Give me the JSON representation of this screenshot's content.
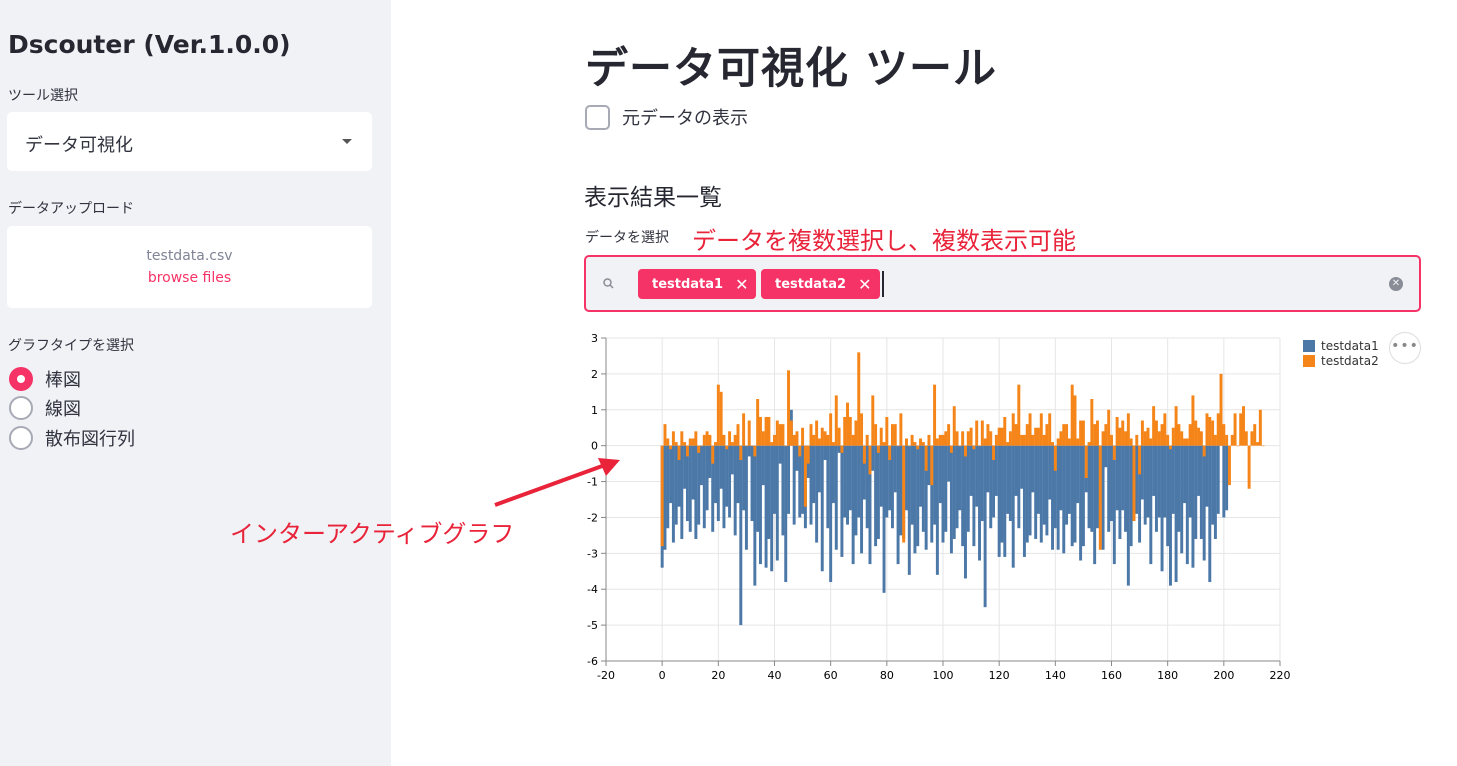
{
  "sidebar": {
    "app_title": "Dscouter (Ver.1.0.0)",
    "tool_label": "ツール選択",
    "tool_value": "データ可視化",
    "upload_label": "データアップロード",
    "upload_filename": "testdata.csv",
    "upload_browse": "browse files",
    "graph_label": "グラフタイプを選択",
    "graph_options": [
      {
        "label": "棒図",
        "selected": true
      },
      {
        "label": "線図",
        "selected": false
      },
      {
        "label": "散布図行列",
        "selected": false
      }
    ]
  },
  "main": {
    "title": "データ可視化 ツール",
    "raw_checkbox_label": "元データの表示",
    "section_title": "表示結果一覧",
    "multiselect_label": "データを選択",
    "selected_tags": [
      "testdata1",
      "testdata2"
    ],
    "tag_remove_glyph": "✕",
    "clear_glyph": "✕",
    "more_glyph": "•••"
  },
  "annotations": {
    "multi_select_note": "データを複数選択し、複数表示可能",
    "interactive_note": "インターアクティブグラフ"
  },
  "colors": {
    "accent": "#f63366",
    "annotation": "#e8233a",
    "series1": "#4c78a8",
    "series2": "#f58518"
  },
  "chart_data": {
    "type": "bar",
    "x_ticks": [
      -20,
      0,
      20,
      40,
      60,
      80,
      100,
      120,
      140,
      160,
      180,
      200,
      220
    ],
    "y_ticks": [
      3,
      2,
      1,
      0,
      -1,
      -2,
      -3,
      -4,
      -5,
      -6
    ],
    "xlim": [
      -20,
      220
    ],
    "ylim": [
      -6,
      3
    ],
    "grid": true,
    "legend_position": "top-right",
    "series": [
      {
        "name": "testdata1",
        "color": "#4c78a8",
        "values": [
          -3.4,
          -2.9,
          -2.3,
          -1.6,
          -2.7,
          -2.2,
          -1.7,
          -2.6,
          -1.2,
          -2.1,
          -2.4,
          -1.5,
          -2.6,
          -2.2,
          -1.1,
          -2.3,
          -1.8,
          -0.9,
          -2.4,
          -1.6,
          -2.1,
          -1.2,
          -2.3,
          -1.7,
          -2.0,
          -0.8,
          -2.5,
          -1.6,
          -5.0,
          -1.8,
          -2.9,
          -0.3,
          -2.1,
          -3.9,
          -2.4,
          -3.3,
          -1.1,
          -3.4,
          -2.6,
          -3.5,
          -1.9,
          -3.2,
          -0.5,
          -2.5,
          -3.8,
          -1.9,
          1.0,
          -2.2,
          -0.7,
          -2.0,
          -1.9,
          -2.3,
          -0.9,
          -2.2,
          -1.6,
          -2.7,
          -1.3,
          -3.5,
          -0.4,
          -2.3,
          -3.8,
          -1.6,
          -2.9,
          -0.2,
          -3.1,
          -2.0,
          -2.2,
          -1.8,
          -3.3,
          -2.5,
          -2.0,
          -3.0,
          -1.5,
          -2.3,
          -3.3,
          -0.7,
          -2.8,
          -2.6,
          -1.7,
          -4.1,
          -2.0,
          -1.8,
          -2.3,
          -1.3,
          -3.3,
          -2.5,
          -2.6,
          -1.8,
          -3.6,
          -2.2,
          -3.0,
          -2.8,
          -1.7,
          -2.4,
          -2.9,
          -1.1,
          -2.7,
          -2.2,
          -3.6,
          -1.6,
          -2.7,
          -2.4,
          -1.0,
          -3.0,
          -2.6,
          -2.3,
          -1.8,
          -2.8,
          -3.7,
          -2.4,
          -1.4,
          -2.8,
          -1.7,
          -3.2,
          -2.1,
          -4.5,
          -1.3,
          -2.3,
          -2.0,
          -1.4,
          -3.1,
          -2.7,
          -3.1,
          -1.9,
          -2.1,
          -3.4,
          -1.4,
          -2.3,
          -1.2,
          -3.1,
          -2.7,
          -2.5,
          -1.3,
          -2.6,
          -1.9,
          -2.7,
          -2.2,
          -2.5,
          -1.5,
          -2.9,
          -2.3,
          -2.9,
          -1.8,
          -3.0,
          -2.2,
          -1.9,
          -2.8,
          -2.7,
          -1.6,
          -3.2,
          -2.8,
          -1.3,
          -2.3,
          -2.4,
          -3.3,
          -2.3,
          -1.6,
          -2.9,
          -0.6,
          -2.4,
          -2.1,
          -3.3,
          -1.8,
          -2.6,
          -1.8,
          -2.4,
          -3.9,
          -2.8,
          -2.1,
          -1.9,
          -2.7,
          -1.5,
          -2.2,
          -2.0,
          -3.3,
          -1.4,
          -2.4,
          -2.0,
          -3.5,
          -2.0,
          -2.8,
          -3.9,
          -1.9,
          -3.8,
          -2.4,
          -3.0,
          -1.6,
          -3.3,
          -2.0,
          -3.4,
          -2.6,
          -1.4,
          -2.6,
          -3.2,
          -1.7,
          -3.8,
          -2.2,
          -2.6,
          -1.9,
          0.9,
          -2.0,
          -1.8
        ],
        "base_note": ""
      },
      {
        "name": "testdata2",
        "color": "#f58518",
        "values": [
          -2.8,
          0.6,
          0.2,
          -0.1,
          0.4,
          0.1,
          -0.4,
          0.4,
          0.1,
          -0.3,
          0.2,
          0.2,
          0.4,
          -0.2,
          0.0,
          0.3,
          0.4,
          0.3,
          -0.5,
          0.1,
          1.7,
          1.5,
          0.3,
          -0.1,
          0.4,
          0.1,
          0.3,
          0.6,
          -0.4,
          0.9,
          0.0,
          0.7,
          0.0,
          -0.3,
          1.3,
          0.8,
          0.4,
          0.8,
          0.8,
          0.1,
          0.3,
          0.7,
          0.6,
          0.6,
          0.0,
          2.1,
          0.7,
          0.3,
          0.4,
          -0.3,
          0.5,
          -1.7,
          -0.5,
          0.6,
          0.3,
          0.7,
          0.2,
          0.5,
          0.4,
          0.3,
          0.9,
          0.1,
          1.4,
          0.5,
          -0.2,
          0.8,
          1.2,
          0.8,
          0.3,
          0.7,
          2.6,
          0.9,
          -0.5,
          0.3,
          -0.8,
          1.4,
          0.6,
          -0.2,
          0.5,
          0.1,
          0.8,
          -0.4,
          0.6,
          0.6,
          0.0,
          0.9,
          -2.7,
          0.2,
          0.0,
          0.3,
          0.1,
          -0.1,
          0.2,
          0.1,
          -0.7,
          0.3,
          -1.1,
          1.7,
          0.2,
          0.3,
          0.3,
          0.4,
          0.6,
          -0.2,
          1.1,
          0.4,
          0.0,
          0.4,
          -0.3,
          0.4,
          0.5,
          -0.1,
          0.7,
          0.0,
          0.7,
          0.2,
          0.6,
          0.4,
          -0.4,
          0.3,
          0.5,
          0.5,
          0.8,
          0.1,
          0.4,
          0.9,
          0.6,
          1.7,
          0.3,
          0.3,
          0.6,
          0.9,
          0.3,
          0.5,
          0.5,
          0.9,
          0.3,
          0.6,
          0.9,
          0.1,
          -0.7,
          0.2,
          0.4,
          0.6,
          0.6,
          0.2,
          1.7,
          1.4,
          0.2,
          0.7,
          0.7,
          -0.9,
          0.1,
          1.3,
          0.6,
          0.7,
          -2.9,
          0.4,
          0.6,
          1.0,
          0.3,
          -0.4,
          0.8,
          0.5,
          0.7,
          0.4,
          0.9,
          0.2,
          -2.1,
          0.3,
          -0.8,
          0.7,
          0.4,
          0.5,
          0.2,
          1.1,
          0.7,
          0.4,
          0.6,
          0.9,
          0.3,
          -0.1,
          0.5,
          1.1,
          0.6,
          0.4,
          0.2,
          0.2,
          0.6,
          1.4,
          0.7,
          0.5,
          0.4,
          -0.3,
          0.9,
          0.8,
          0.7,
          0.3,
          0.9,
          2.0,
          0.6,
          0.3,
          -1.1,
          0.3,
          0.9,
          0.0,
          0.9,
          1.1,
          0.4,
          -1.2,
          0.4,
          0.6,
          0.1,
          1.0,
          0.0
        ]
      }
    ]
  }
}
